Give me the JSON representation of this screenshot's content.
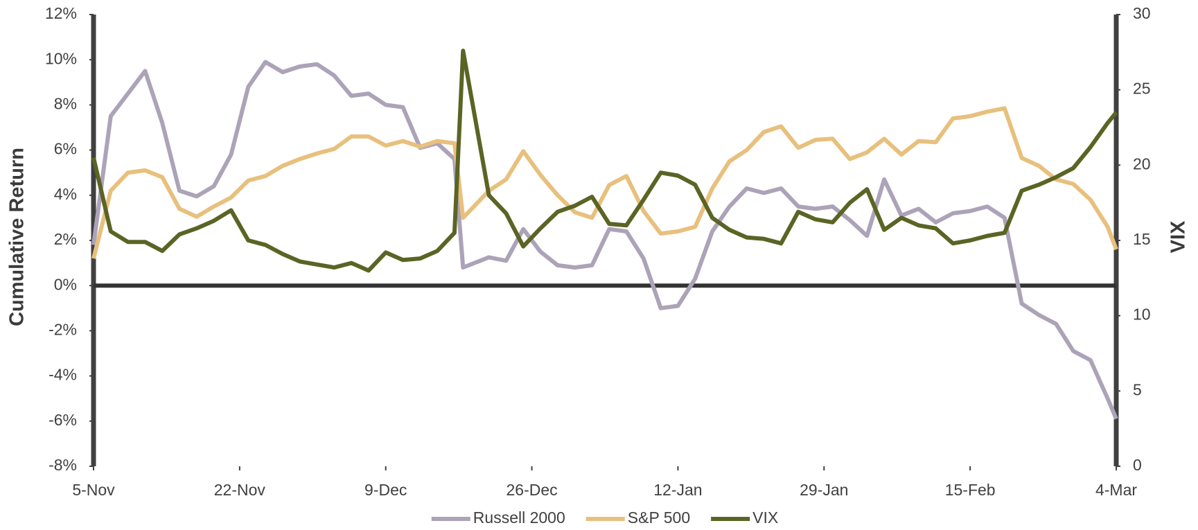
{
  "chart_data": {
    "type": "line",
    "y_label": "Cumulative Return",
    "y2_label": "VIX",
    "x": [
      0,
      2,
      4,
      6,
      8,
      10,
      12,
      14,
      16,
      18,
      20,
      22,
      24,
      26,
      28,
      30,
      32,
      34,
      36,
      38,
      40,
      42,
      43,
      46,
      48,
      50,
      52,
      54,
      56,
      58,
      60,
      62,
      64,
      66,
      68,
      70,
      72,
      74,
      76,
      78,
      80,
      82,
      84,
      86,
      88,
      90,
      92,
      94,
      96,
      98,
      100,
      102,
      104,
      106,
      108,
      110,
      112,
      114,
      116,
      118,
      119
    ],
    "xlim": [
      0,
      119
    ],
    "xticks": [
      {
        "value": 0,
        "label": "5-Nov"
      },
      {
        "value": 17,
        "label": "22-Nov"
      },
      {
        "value": 34,
        "label": "9-Dec"
      },
      {
        "value": 51,
        "label": "26-Dec"
      },
      {
        "value": 68,
        "label": "12-Jan"
      },
      {
        "value": 85,
        "label": "29-Jan"
      },
      {
        "value": 102,
        "label": "15-Feb"
      },
      {
        "value": 119,
        "label": "4-Mar"
      }
    ],
    "ylim": [
      -8,
      12
    ],
    "yticks": [
      {
        "value": -8,
        "label": "-8%"
      },
      {
        "value": -6,
        "label": "-6%"
      },
      {
        "value": -4,
        "label": "-4%"
      },
      {
        "value": -2,
        "label": "-2%"
      },
      {
        "value": 0,
        "label": "0%"
      },
      {
        "value": 2,
        "label": "2%"
      },
      {
        "value": 4,
        "label": "4%"
      },
      {
        "value": 6,
        "label": "6%"
      },
      {
        "value": 8,
        "label": "8%"
      },
      {
        "value": 10,
        "label": "10%"
      },
      {
        "value": 12,
        "label": "12%"
      }
    ],
    "y2lim": [
      0,
      30
    ],
    "y2ticks": [
      0,
      5,
      10,
      15,
      20,
      25,
      30
    ],
    "legend": "bottom",
    "series": [
      {
        "name": "Russell 2000",
        "color": "#aca3b8",
        "values": [
          1.8,
          7.5,
          8.5,
          9.5,
          7.2,
          4.2,
          3.95,
          4.4,
          5.8,
          8.8,
          9.9,
          9.45,
          9.7,
          9.8,
          9.3,
          8.4,
          8.5,
          8.0,
          7.9,
          6.1,
          6.3,
          5.6,
          0.8,
          1.25,
          1.1,
          2.5,
          1.5,
          0.9,
          0.8,
          0.9,
          2.5,
          2.4,
          1.2,
          -1.0,
          -0.9,
          0.3,
          2.4,
          3.5,
          4.3,
          4.1,
          4.3,
          3.5,
          3.4,
          3.5,
          2.9,
          2.2,
          4.7,
          3.1,
          3.4,
          2.8,
          3.2,
          3.3,
          3.5,
          3.0,
          -0.8,
          -1.3,
          -1.7,
          -2.9,
          -3.3,
          -5.0,
          -5.9
        ]
      },
      {
        "name": "S&P 500",
        "color": "#e8c07d",
        "values": [
          1.2,
          4.2,
          5.0,
          5.1,
          4.8,
          3.4,
          3.05,
          3.5,
          3.9,
          4.65,
          4.85,
          5.3,
          5.6,
          5.85,
          6.05,
          6.6,
          6.6,
          6.2,
          6.4,
          6.15,
          6.4,
          6.3,
          3.0,
          4.2,
          4.7,
          5.95,
          4.9,
          4.0,
          3.25,
          3.0,
          4.45,
          4.85,
          3.3,
          2.3,
          2.4,
          2.6,
          4.3,
          5.5,
          6.0,
          6.8,
          7.05,
          6.1,
          6.45,
          6.5,
          5.6,
          5.9,
          6.5,
          5.8,
          6.4,
          6.35,
          7.4,
          7.5,
          7.7,
          7.85,
          5.65,
          5.3,
          4.7,
          4.5,
          3.8,
          2.6,
          1.6
        ]
      },
      {
        "name": "VIX",
        "color": "#5b6424",
        "axis": "y2",
        "values": [
          20.5,
          15.6,
          14.9,
          14.9,
          14.3,
          15.4,
          15.8,
          16.3,
          17.0,
          15.0,
          14.7,
          14.1,
          13.6,
          13.4,
          13.2,
          13.5,
          13.0,
          14.2,
          13.7,
          13.8,
          14.3,
          15.5,
          27.6,
          18.0,
          16.8,
          14.6,
          15.8,
          16.9,
          17.3,
          17.9,
          16.1,
          16.0,
          17.7,
          19.5,
          19.3,
          18.7,
          16.5,
          15.7,
          15.2,
          15.1,
          14.8,
          16.9,
          16.4,
          16.2,
          17.5,
          18.4,
          15.7,
          16.5,
          16.0,
          15.8,
          14.8,
          15.0,
          15.3,
          15.5,
          18.3,
          18.7,
          19.2,
          19.8,
          21.2,
          22.8,
          23.5
        ]
      }
    ]
  }
}
